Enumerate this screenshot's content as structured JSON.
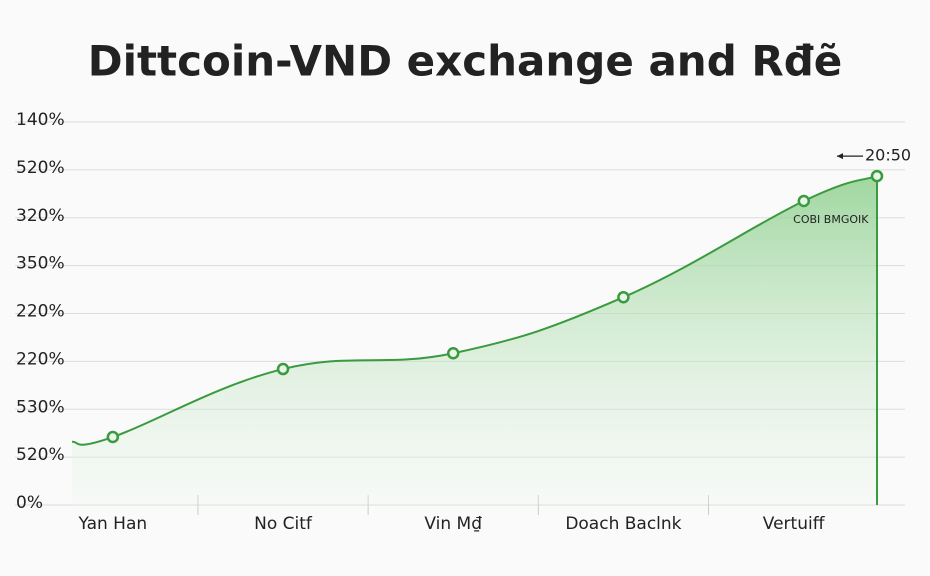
{
  "chart_data": {
    "type": "area-line",
    "title": "Dittcoin-VND exchange and Rđẽ",
    "x": [
      -0.24,
      0,
      1,
      2,
      3,
      4.06,
      4.49
    ],
    "xlim": [
      -0.24,
      4.49
    ],
    "xticks": [
      {
        "value": 0,
        "label": "Yan Han"
      },
      {
        "value": 1,
        "label": "No Citf"
      },
      {
        "value": 2,
        "label": "Vin M₫"
      },
      {
        "value": 3,
        "label": "Doach Baclnk"
      },
      {
        "value": 4,
        "label": "Vertuiff"
      }
    ],
    "series": [
      {
        "color": "#3a9a3f",
        "values": [
          1.32,
          1.42,
          2.84,
          3.17,
          4.34,
          6.35,
          6.87
        ]
      }
    ],
    "ylim": [
      0,
      8
    ],
    "yticks": [
      {
        "value": 0,
        "label": "0%"
      },
      {
        "value": 1,
        "label": "520%"
      },
      {
        "value": 2,
        "label": "530%"
      },
      {
        "value": 3,
        "label": "220%"
      },
      {
        "value": 4,
        "label": "220%"
      },
      {
        "value": 5,
        "label": "350%"
      },
      {
        "value": 6,
        "label": "320%"
      },
      {
        "value": 7,
        "label": "520%"
      },
      {
        "value": 8,
        "label": "140%"
      }
    ],
    "grid": true,
    "annotations": [
      {
        "text": "20:50",
        "x": 4.49,
        "y": 6.87
      },
      {
        "text": "COBI BMGOIK",
        "x": 4.06,
        "y": 6.35
      }
    ]
  }
}
